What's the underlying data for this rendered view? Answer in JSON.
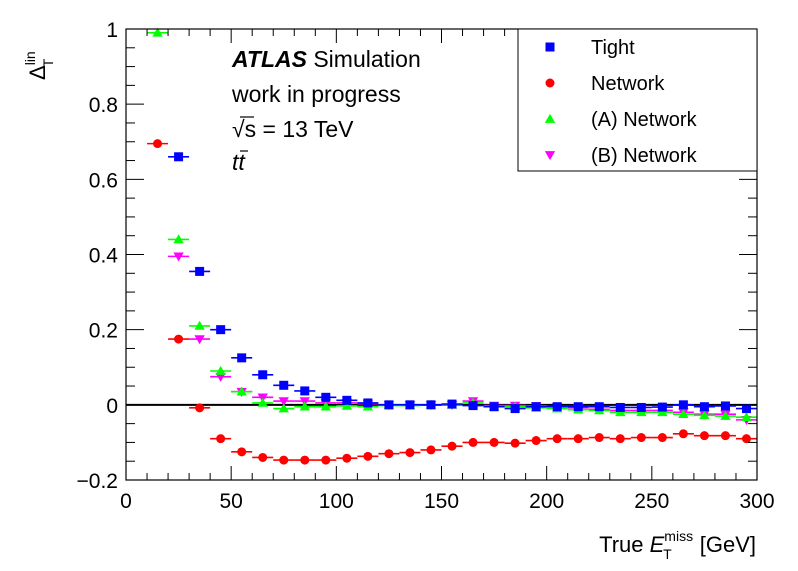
{
  "chart_data": {
    "type": "scatter",
    "x": [
      15,
      25,
      35,
      45,
      55,
      65,
      75,
      85,
      95,
      105,
      115,
      125,
      135,
      145,
      155,
      165,
      175,
      185,
      195,
      205,
      215,
      225,
      235,
      245,
      255,
      265,
      275,
      285,
      295
    ],
    "x_bin_width": 10,
    "xlim": [
      0,
      300
    ],
    "ylim": [
      -0.2,
      1.0
    ],
    "xticks": [
      0,
      50,
      100,
      150,
      200,
      250,
      300
    ],
    "yticks": [
      -0.2,
      0,
      0.2,
      0.4,
      0.6,
      0.8,
      1
    ],
    "xtick_labels": [
      "0",
      "50",
      "100",
      "150",
      "200",
      "250",
      "300"
    ],
    "ytick_labels": [
      "−0.2",
      "0",
      "0.2",
      "0.4",
      "0.6",
      "0.8",
      "1"
    ],
    "xlabel": {
      "prefix": "True ",
      "symbol": "E",
      "sup": "miss",
      "sub": "T",
      "suffix": " [GeV]"
    },
    "ylabel": {
      "symbol": "Δ",
      "sup": "lin",
      "sub": "T"
    },
    "reference_line_y": 0,
    "grid": false,
    "legend_position": "top-right",
    "series": [
      {
        "name": "Tight",
        "color": "#0000ff",
        "marker": "square",
        "values": [
          null,
          0.66,
          0.355,
          0.2,
          0.125,
          0.08,
          0.052,
          0.037,
          0.02,
          0.012,
          0.005,
          0.0,
          0.0,
          0.0,
          0.002,
          -0.002,
          -0.005,
          -0.01,
          -0.005,
          -0.005,
          -0.005,
          -0.005,
          -0.007,
          -0.007,
          -0.006,
          0.0,
          -0.005,
          -0.003,
          -0.01
        ]
      },
      {
        "name": "Network",
        "color": "#ff0000",
        "marker": "circle",
        "values": [
          0.695,
          0.175,
          -0.008,
          -0.09,
          -0.125,
          -0.14,
          -0.147,
          -0.147,
          -0.147,
          -0.142,
          -0.137,
          -0.13,
          -0.127,
          -0.12,
          -0.11,
          -0.1,
          -0.1,
          -0.102,
          -0.095,
          -0.09,
          -0.09,
          -0.087,
          -0.09,
          -0.087,
          -0.087,
          -0.077,
          -0.082,
          -0.082,
          -0.09
        ]
      },
      {
        "name": "(A) Network",
        "color": "#00ff00",
        "marker": "triangle-up",
        "values": [
          0.99,
          0.44,
          0.21,
          0.09,
          0.035,
          0.005,
          -0.01,
          -0.005,
          -0.005,
          -0.003,
          -0.005,
          -0.002,
          -0.002,
          0.0,
          0.0,
          0.005,
          -0.005,
          -0.005,
          -0.008,
          -0.01,
          -0.013,
          -0.015,
          -0.02,
          -0.02,
          -0.02,
          -0.025,
          -0.028,
          -0.03,
          -0.033
        ]
      },
      {
        "name": "(B) Network",
        "color": "#ff00ff",
        "marker": "triangle-down",
        "values": [
          null,
          0.395,
          0.175,
          0.075,
          0.035,
          0.02,
          0.01,
          0.01,
          0.005,
          0.005,
          0.003,
          0.0,
          0.0,
          0.0,
          0.0,
          0.01,
          -0.002,
          -0.002,
          -0.003,
          -0.005,
          -0.008,
          -0.012,
          -0.015,
          -0.015,
          -0.015,
          -0.02,
          -0.025,
          -0.025,
          -0.04
        ]
      }
    ],
    "annotation": {
      "atlas": "ATLAS",
      "atlas_suffix": " Simulation",
      "line2": "work in progress",
      "line3_root": "√s",
      "line3_rest": " = 13 TeV",
      "line4_t1": "t",
      "line4_t2": "t"
    }
  }
}
